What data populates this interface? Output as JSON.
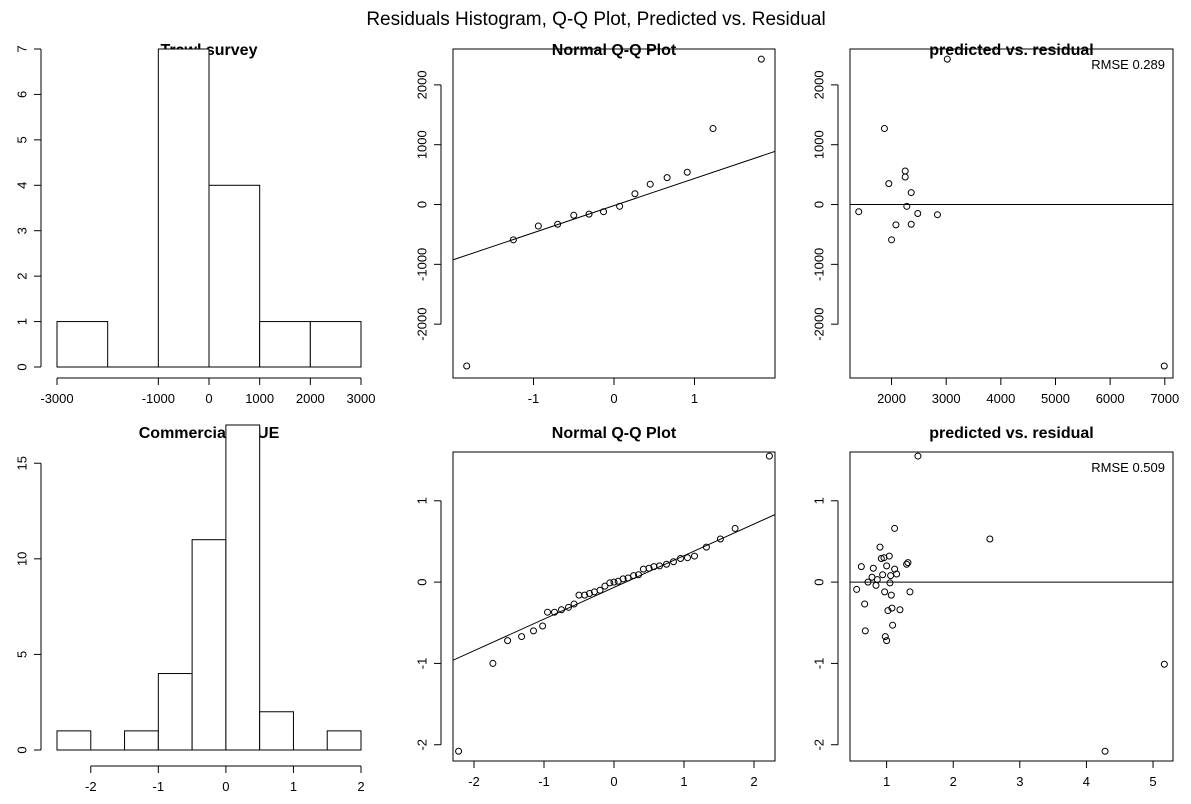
{
  "figure_title": "Residuals Histogram, Q-Q Plot, Predicted vs. Residual",
  "chart_data": [
    {
      "type": "bar",
      "panel": "histogram",
      "title": "Trawl survey",
      "bins": [
        [
          -3000,
          -2000
        ],
        [
          -2000,
          -1000
        ],
        [
          -1000,
          0
        ],
        [
          0,
          1000
        ],
        [
          1000,
          2000
        ],
        [
          2000,
          3000
        ]
      ],
      "values": [
        1,
        0,
        7,
        4,
        1,
        1
      ],
      "xlim": [
        -3000,
        3000
      ],
      "ylim": [
        0,
        7
      ],
      "xticks": [
        -3000,
        -1000,
        0,
        1000,
        2000,
        3000
      ],
      "xtick_labels": [
        "-3000",
        "-1000",
        "0",
        "1000",
        "2000",
        "3000"
      ],
      "yticks": [
        0,
        1,
        2,
        3,
        4,
        5,
        6,
        7
      ],
      "ytick_labels": [
        "0",
        "1",
        "2",
        "3",
        "4",
        "5",
        "6",
        "7"
      ]
    },
    {
      "type": "scatter",
      "panel": "qq",
      "title": "Normal Q-Q Plot",
      "points": [
        [
          -1.83,
          -2700
        ],
        [
          -1.25,
          -590
        ],
        [
          -0.94,
          -360
        ],
        [
          -0.7,
          -330
        ],
        [
          -0.5,
          -180
        ],
        [
          -0.31,
          -160
        ],
        [
          -0.13,
          -120
        ],
        [
          0.07,
          -30
        ],
        [
          0.26,
          180
        ],
        [
          0.45,
          340
        ],
        [
          0.66,
          450
        ],
        [
          0.91,
          540
        ],
        [
          1.23,
          1270
        ],
        [
          1.83,
          2430
        ]
      ],
      "refline": [
        [
          -2.1,
          -970
        ],
        [
          2.4,
          1070
        ]
      ],
      "xlim": [
        -2.0,
        2.0
      ],
      "ylim": [
        -2900,
        2600
      ],
      "xticks": [
        -1,
        0,
        1
      ],
      "xtick_labels": [
        "-1",
        "0",
        "1"
      ],
      "yticks": [
        -2000,
        -1000,
        0,
        1000,
        2000
      ],
      "ytick_labels": [
        "-2000",
        "-1000",
        "0",
        "1000",
        "2000"
      ]
    },
    {
      "type": "scatter",
      "panel": "resid",
      "title": "predicted vs. residual",
      "annotation": "RMSE 0.289",
      "points": [
        [
          1400,
          -120
        ],
        [
          1870,
          1270
        ],
        [
          1950,
          350
        ],
        [
          2000,
          -590
        ],
        [
          2080,
          -340
        ],
        [
          2250,
          560
        ],
        [
          2250,
          460
        ],
        [
          2280,
          -30
        ],
        [
          2360,
          200
        ],
        [
          2360,
          -330
        ],
        [
          2480,
          -150
        ],
        [
          2840,
          -170
        ],
        [
          3020,
          2430
        ],
        [
          6990,
          -2700
        ]
      ],
      "hline": 0,
      "xlim": [
        1240,
        7150
      ],
      "ylim": [
        -2900,
        2600
      ],
      "xticks": [
        2000,
        3000,
        4000,
        5000,
        6000,
        7000
      ],
      "xtick_labels": [
        "2000",
        "3000",
        "4000",
        "5000",
        "6000",
        "7000"
      ],
      "yticks": [
        -2000,
        -1000,
        0,
        1000,
        2000
      ],
      "ytick_labels": [
        "-2000",
        "-1000",
        "0",
        "1000",
        "2000"
      ]
    },
    {
      "type": "bar",
      "panel": "histogram",
      "title": "Commercial CPUE",
      "bins": [
        [
          -2.5,
          -2
        ],
        [
          -2,
          -1.5
        ],
        [
          -1.5,
          -1
        ],
        [
          -1,
          -0.5
        ],
        [
          -0.5,
          0
        ],
        [
          0,
          0.5
        ],
        [
          0.5,
          1
        ],
        [
          1,
          1.5
        ],
        [
          1.5,
          2
        ]
      ],
      "values": [
        1,
        0,
        1,
        4,
        11,
        17,
        2,
        0,
        1
      ],
      "xlim": [
        -2.5,
        2.0
      ],
      "ylim": [
        0,
        17
      ],
      "xticks": [
        -2,
        -1,
        0,
        1,
        2
      ],
      "xtick_labels": [
        "-2",
        "-1",
        "0",
        "1",
        "2"
      ],
      "yticks": [
        0,
        5,
        10,
        15
      ],
      "ytick_labels": [
        "0",
        "5",
        "10",
        "15"
      ]
    },
    {
      "type": "scatter",
      "panel": "qq",
      "title": "Normal Q-Q Plot",
      "points": [
        [
          -2.22,
          -2.08
        ],
        [
          -1.73,
          -1.0
        ],
        [
          -1.52,
          -0.72
        ],
        [
          -1.32,
          -0.67
        ],
        [
          -1.15,
          -0.6
        ],
        [
          -1.02,
          -0.54
        ],
        [
          -0.95,
          -0.37
        ],
        [
          -0.85,
          -0.37
        ],
        [
          -0.75,
          -0.34
        ],
        [
          -0.65,
          -0.31
        ],
        [
          -0.57,
          -0.27
        ],
        [
          -0.5,
          -0.16
        ],
        [
          -0.42,
          -0.16
        ],
        [
          -0.35,
          -0.14
        ],
        [
          -0.28,
          -0.12
        ],
        [
          -0.2,
          -0.1
        ],
        [
          -0.13,
          -0.05
        ],
        [
          -0.06,
          -0.01
        ],
        [
          0.0,
          0.0
        ],
        [
          0.06,
          0.01
        ],
        [
          0.13,
          0.04
        ],
        [
          0.2,
          0.05
        ],
        [
          0.28,
          0.08
        ],
        [
          0.35,
          0.09
        ],
        [
          0.42,
          0.16
        ],
        [
          0.5,
          0.17
        ],
        [
          0.57,
          0.19
        ],
        [
          0.65,
          0.2
        ],
        [
          0.75,
          0.22
        ],
        [
          0.85,
          0.25
        ],
        [
          0.95,
          0.29
        ],
        [
          1.05,
          0.3
        ],
        [
          1.15,
          0.32
        ],
        [
          1.32,
          0.43
        ],
        [
          1.52,
          0.53
        ],
        [
          1.73,
          0.66
        ],
        [
          2.22,
          1.55
        ]
      ],
      "refline": [
        [
          -2.4,
          -1.0
        ],
        [
          2.4,
          0.87
        ]
      ],
      "xlim": [
        -2.3,
        2.3
      ],
      "ylim": [
        -2.2,
        1.6
      ],
      "xticks": [
        -2,
        -1,
        0,
        1,
        2
      ],
      "xtick_labels": [
        "-2",
        "-1",
        "0",
        "1",
        "2"
      ],
      "yticks": [
        -2,
        -1,
        0,
        1
      ],
      "ytick_labels": [
        "-2",
        "-1",
        "0",
        "1"
      ]
    },
    {
      "type": "scatter",
      "panel": "resid",
      "title": "predicted vs. residual",
      "annotation": "RMSE 0.509",
      "points": [
        [
          0.55,
          -0.09
        ],
        [
          0.62,
          0.19
        ],
        [
          0.67,
          -0.27
        ],
        [
          0.68,
          -0.6
        ],
        [
          0.72,
          0.0
        ],
        [
          0.78,
          0.06
        ],
        [
          0.8,
          0.17
        ],
        [
          0.84,
          -0.04
        ],
        [
          0.86,
          0.03
        ],
        [
          0.9,
          0.43
        ],
        [
          0.92,
          0.29
        ],
        [
          0.94,
          0.09
        ],
        [
          0.96,
          0.3
        ],
        [
          0.97,
          -0.12
        ],
        [
          0.98,
          -0.67
        ],
        [
          1.0,
          -0.72
        ],
        [
          1.0,
          0.2
        ],
        [
          1.02,
          -0.35
        ],
        [
          1.04,
          0.32
        ],
        [
          1.05,
          -0.01
        ],
        [
          1.06,
          0.08
        ],
        [
          1.07,
          -0.16
        ],
        [
          1.08,
          -0.32
        ],
        [
          1.09,
          -0.53
        ],
        [
          1.12,
          0.66
        ],
        [
          1.12,
          0.16
        ],
        [
          1.15,
          0.1
        ],
        [
          1.2,
          -0.34
        ],
        [
          1.3,
          0.22
        ],
        [
          1.32,
          0.24
        ],
        [
          1.35,
          -0.12
        ],
        [
          1.47,
          1.55
        ],
        [
          2.55,
          0.53
        ],
        [
          4.28,
          -2.08
        ],
        [
          5.17,
          -1.01
        ]
      ],
      "hline": 0,
      "xlim": [
        0.45,
        5.3
      ],
      "ylim": [
        -2.2,
        1.6
      ],
      "xticks": [
        1,
        2,
        3,
        4,
        5
      ],
      "xtick_labels": [
        "1",
        "2",
        "3",
        "4",
        "5"
      ],
      "yticks": [
        -2,
        -1,
        0,
        1
      ],
      "ytick_labels": [
        "-2",
        "-1",
        "0",
        "1"
      ]
    }
  ]
}
